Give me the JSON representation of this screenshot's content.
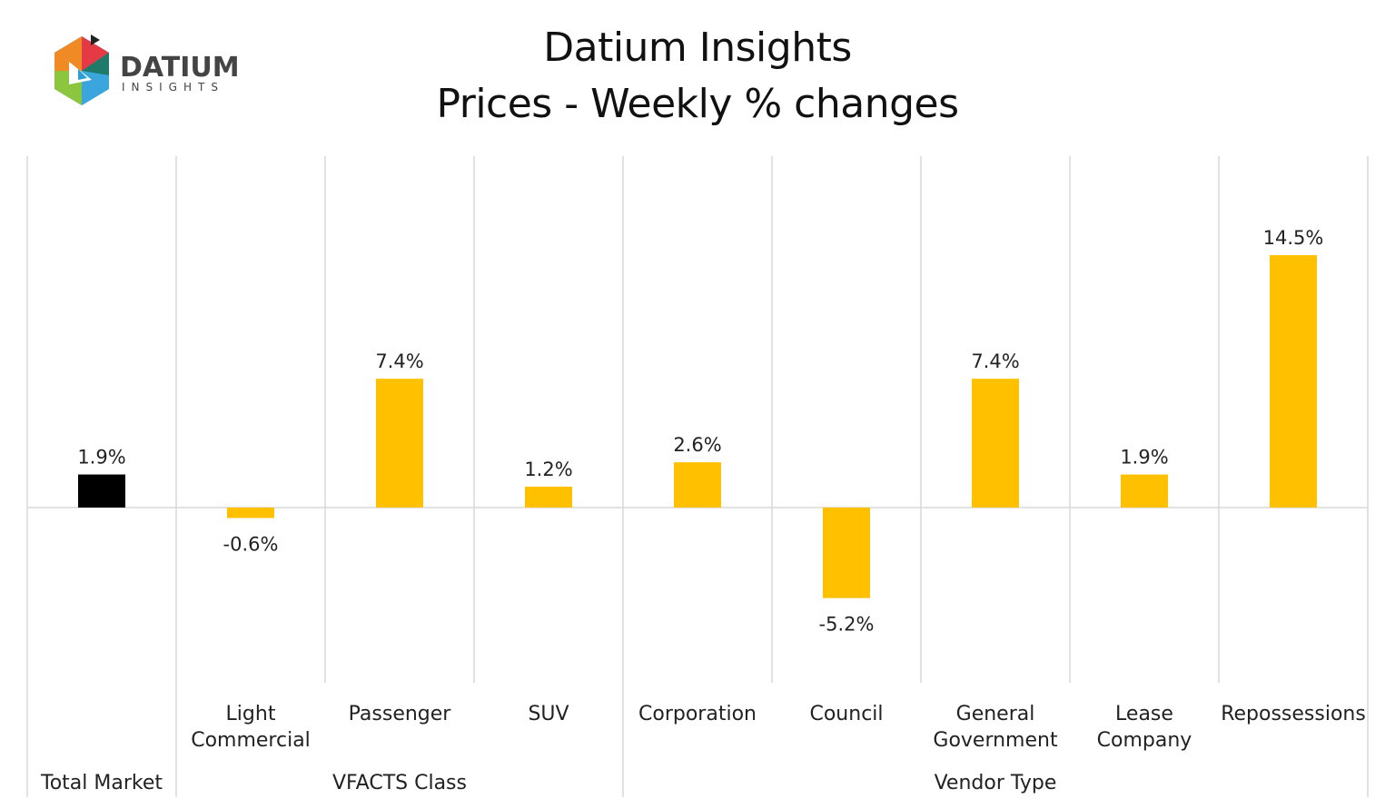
{
  "logo": {
    "brand": "DATIUM",
    "sub": "INSIGHTS"
  },
  "chart_data": {
    "type": "bar",
    "title": [
      "Datium Insights",
      "Prices - Weekly % changes"
    ],
    "categories": [
      "Total Market",
      "Light Commercial",
      "Passenger",
      "SUV",
      "Corporation",
      "Council",
      "General Government",
      "Lease Company",
      "Repossessions"
    ],
    "category_lines": [
      [
        ""
      ],
      [
        "Light",
        "Commercial"
      ],
      [
        "Passenger"
      ],
      [
        "SUV"
      ],
      [
        "Corporation"
      ],
      [
        "Council"
      ],
      [
        "General",
        "Government"
      ],
      [
        "Lease",
        "Company"
      ],
      [
        "Repossessions"
      ]
    ],
    "groups": [
      {
        "label": "Total Market",
        "span": 1
      },
      {
        "label": "VFACTS Class",
        "span": 3
      },
      {
        "label": "Vendor Type",
        "span": 5
      }
    ],
    "values": [
      1.9,
      -0.6,
      7.4,
      1.2,
      2.6,
      -5.2,
      7.4,
      1.9,
      14.5
    ],
    "data_labels": [
      "1.9%",
      "-0.6%",
      "7.4%",
      "1.2%",
      "2.6%",
      "-5.2%",
      "7.4%",
      "1.9%",
      "14.5%"
    ],
    "unit": "%",
    "colors": [
      "#000000",
      "#FFC000",
      "#FFC000",
      "#FFC000",
      "#FFC000",
      "#FFC000",
      "#FFC000",
      "#FFC000",
      "#FFC000"
    ],
    "y_axis_visible": false,
    "grid": "vertical category separators",
    "legend": "none"
  }
}
